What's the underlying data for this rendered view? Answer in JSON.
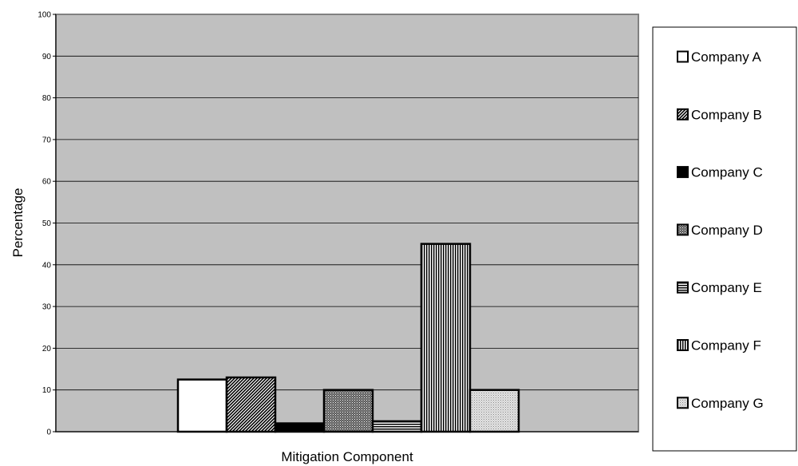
{
  "chart_data": {
    "type": "bar",
    "title": "",
    "xlabel": "Mitigation Component",
    "ylabel": "Percentage",
    "ylim": [
      0,
      100
    ],
    "yticks": [
      0,
      10,
      20,
      30,
      40,
      50,
      60,
      70,
      80,
      90,
      100
    ],
    "categories": [
      "Mitigation Component"
    ],
    "grid": true,
    "legend_position": "right",
    "plot_background": "#c0c0c0",
    "series": [
      {
        "name": "Company A",
        "values": [
          12.5
        ],
        "pattern": "solid-white"
      },
      {
        "name": "Company B",
        "values": [
          13
        ],
        "pattern": "diagonal-hatch"
      },
      {
        "name": "Company C",
        "values": [
          2
        ],
        "pattern": "solid-black"
      },
      {
        "name": "Company D",
        "values": [
          10
        ],
        "pattern": "dense-dots"
      },
      {
        "name": "Company E",
        "values": [
          2.5
        ],
        "pattern": "horizontal-lines"
      },
      {
        "name": "Company F",
        "values": [
          45
        ],
        "pattern": "vertical-lines"
      },
      {
        "name": "Company G",
        "values": [
          10
        ],
        "pattern": "light-dots"
      }
    ]
  }
}
